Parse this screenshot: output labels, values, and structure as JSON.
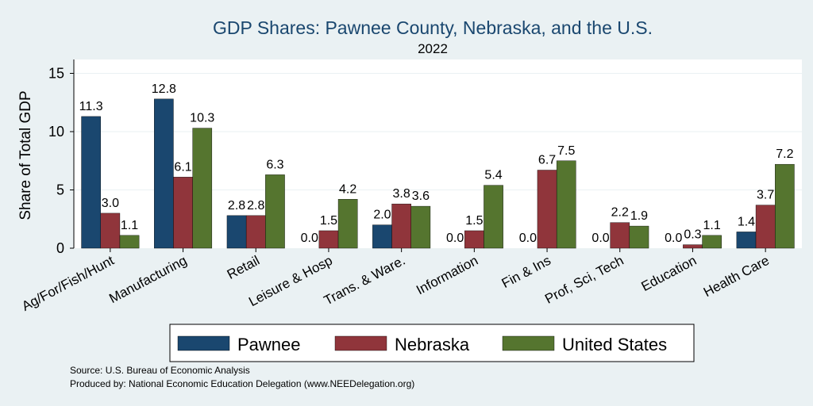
{
  "chart_data": {
    "type": "bar",
    "title": "GDP Shares: Pawnee County, Nebraska, and the U.S.",
    "subtitle": "2022",
    "ylabel": "Share of Total GDP",
    "ylim": [
      0,
      16
    ],
    "yticks": [
      0,
      5,
      10,
      15
    ],
    "categories": [
      "Ag/For/Fish/Hunt",
      "Manufacturing",
      "Retail",
      "Leisure & Hosp",
      "Trans. & Ware.",
      "Information",
      "Fin & Ins",
      "Prof, Sci, Tech",
      "Education",
      "Health Care"
    ],
    "series": [
      {
        "name": "Pawnee",
        "color": "#1a476f",
        "values": [
          11.3,
          12.8,
          2.8,
          0.0,
          2.0,
          0.0,
          0.0,
          0.0,
          0.0,
          1.4
        ],
        "labels": [
          "11.3",
          "12.8",
          "2.8",
          "0.0",
          "2.0",
          "0.0",
          "0.0",
          "0.0",
          "0.0",
          "1.4"
        ]
      },
      {
        "name": "Nebraska",
        "color": "#90353b",
        "values": [
          3.0,
          6.1,
          2.8,
          1.5,
          3.8,
          1.5,
          6.7,
          2.2,
          0.3,
          3.7
        ],
        "labels": [
          "3.0",
          "6.1",
          "2.8",
          "1.5",
          "3.8",
          "1.5",
          "6.7",
          "2.2",
          "0.3",
          "3.7"
        ]
      },
      {
        "name": "United States",
        "color": "#55752f",
        "values": [
          1.1,
          10.3,
          6.3,
          4.2,
          3.6,
          5.4,
          7.5,
          1.9,
          1.1,
          7.2
        ],
        "labels": [
          "1.1",
          "10.3",
          "6.3",
          "4.2",
          "3.6",
          "5.4",
          "7.5",
          "1.9",
          "1.1",
          "7.2"
        ]
      }
    ],
    "grid": true,
    "legend": "bottom"
  },
  "source": {
    "line1": "Source: U.S. Bureau of Economic Analysis",
    "line2": "Produced by: National Economic Education Delegation (www.NEEDelegation.org)"
  }
}
